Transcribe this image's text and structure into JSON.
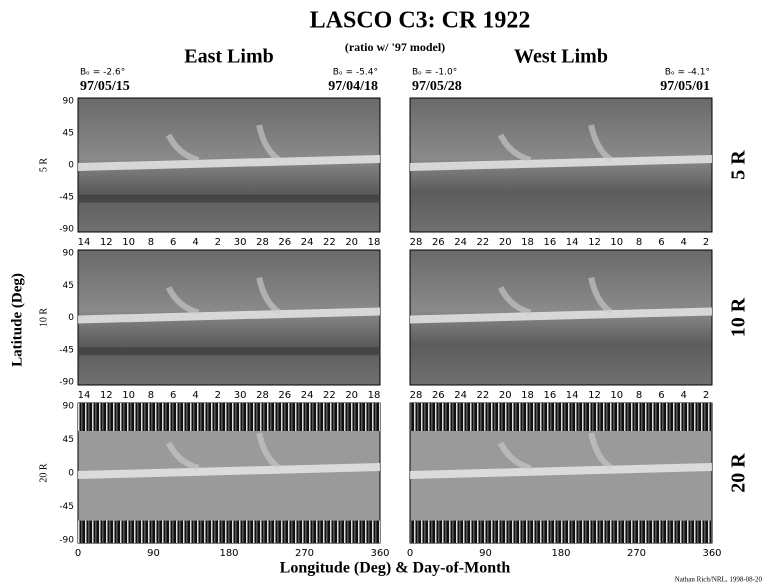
{
  "title": "LASCO C3: CR 1922",
  "subtitle": "(ratio w/ '97 model)",
  "columns": [
    {
      "label": "East Limb",
      "left_b0": "Bₒ = -2.6°",
      "left_date": "97/05/15",
      "right_b0": "Bₒ = -5.4°",
      "right_date": "97/04/18",
      "day_ticks": [
        "14",
        "12",
        "10",
        "8",
        "6",
        "4",
        "2",
        "30",
        "28",
        "26",
        "24",
        "22",
        "20",
        "18"
      ]
    },
    {
      "label": "West Limb",
      "left_b0": "Bₒ = -1.0°",
      "left_date": "97/05/28",
      "right_b0": "Bₒ = -4.1°",
      "right_date": "97/05/01",
      "day_ticks": [
        "28",
        "26",
        "24",
        "22",
        "20",
        "18",
        "16",
        "14",
        "12",
        "10",
        "8",
        "6",
        "4",
        "2"
      ]
    }
  ],
  "rows": [
    {
      "axis_label": "5 R",
      "side_label": "5 R"
    },
    {
      "axis_label": "10 R",
      "side_label": "10 R"
    },
    {
      "axis_label": "20 R",
      "side_label": "20 R"
    }
  ],
  "lat_ticks": [
    "90",
    "45",
    "0",
    "-45",
    "-90"
  ],
  "lon_ticks": [
    "0",
    "90",
    "180",
    "270",
    "360"
  ],
  "y_axis_label": "Latitude (Deg)",
  "x_axis_label": "Longitude (Deg) & Day-of-Month",
  "credit": "Nathan Rich/NRL, 1998-08-20"
}
